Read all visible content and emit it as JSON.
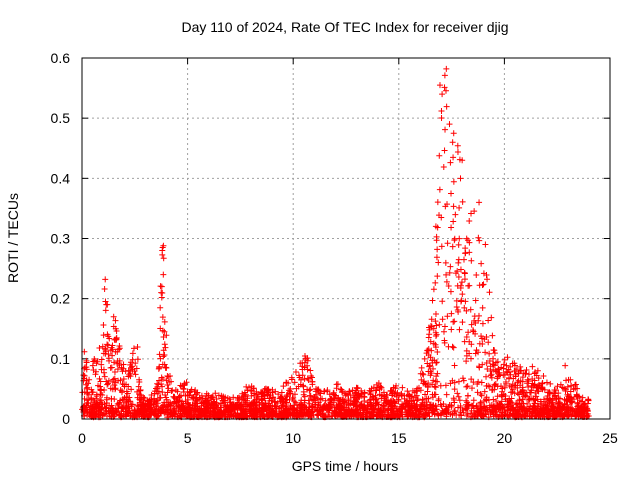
{
  "chart_data": {
    "type": "scatter",
    "title": "Day 110 of 2024, Rate Of TEC Index for receiver djig",
    "xlabel": "GPS time / hours",
    "ylabel": "ROTI / TECUs",
    "xlim": [
      0,
      25
    ],
    "ylim": [
      0,
      0.6
    ],
    "xticks": [
      0,
      5,
      10,
      15,
      20,
      25
    ],
    "xtick_labels": [
      "0",
      "5",
      "10",
      "15",
      "20",
      "25"
    ],
    "yticks": [
      0,
      0.1,
      0.2,
      0.3,
      0.4,
      0.5,
      0.6
    ],
    "ytick_labels": [
      "0",
      "0.1",
      "0.2",
      "0.3",
      "0.4",
      "0.5",
      "0.6"
    ],
    "grid": true,
    "marker": "+",
    "color": "#ff0000",
    "envelope": [
      [
        0.0,
        0.13
      ],
      [
        0.3,
        0.09
      ],
      [
        0.6,
        0.1
      ],
      [
        0.9,
        0.12
      ],
      [
        1.1,
        0.23
      ],
      [
        1.3,
        0.13
      ],
      [
        1.6,
        0.17
      ],
      [
        1.9,
        0.09
      ],
      [
        2.2,
        0.08
      ],
      [
        2.5,
        0.12
      ],
      [
        2.6,
        0.13
      ],
      [
        2.8,
        0.04
      ],
      [
        3.2,
        0.03
      ],
      [
        3.6,
        0.06
      ],
      [
        3.75,
        0.28
      ],
      [
        3.85,
        0.29
      ],
      [
        4.0,
        0.15
      ],
      [
        4.3,
        0.05
      ],
      [
        5.0,
        0.06
      ],
      [
        5.5,
        0.04
      ],
      [
        6.0,
        0.04
      ],
      [
        6.5,
        0.04
      ],
      [
        7.0,
        0.03
      ],
      [
        7.5,
        0.04
      ],
      [
        7.9,
        0.06
      ],
      [
        8.3,
        0.04
      ],
      [
        8.8,
        0.05
      ],
      [
        9.3,
        0.04
      ],
      [
        9.7,
        0.06
      ],
      [
        10.2,
        0.08
      ],
      [
        10.6,
        0.12
      ],
      [
        11.0,
        0.05
      ],
      [
        11.5,
        0.05
      ],
      [
        12.0,
        0.06
      ],
      [
        12.5,
        0.04
      ],
      [
        13.0,
        0.05
      ],
      [
        13.5,
        0.04
      ],
      [
        14.0,
        0.06
      ],
      [
        14.5,
        0.04
      ],
      [
        15.0,
        0.06
      ],
      [
        15.5,
        0.04
      ],
      [
        15.8,
        0.05
      ],
      [
        16.0,
        0.08
      ],
      [
        16.3,
        0.12
      ],
      [
        16.6,
        0.2
      ],
      [
        16.8,
        0.4
      ],
      [
        17.0,
        0.55
      ],
      [
        17.2,
        0.58
      ],
      [
        17.4,
        0.5
      ],
      [
        17.6,
        0.42
      ],
      [
        17.8,
        0.48
      ],
      [
        18.0,
        0.38
      ],
      [
        18.3,
        0.34
      ],
      [
        18.6,
        0.36
      ],
      [
        18.9,
        0.3
      ],
      [
        19.2,
        0.25
      ],
      [
        19.5,
        0.12
      ],
      [
        19.8,
        0.08
      ],
      [
        20.1,
        0.11
      ],
      [
        20.5,
        0.09
      ],
      [
        21.0,
        0.08
      ],
      [
        21.5,
        0.09
      ],
      [
        22.0,
        0.06
      ],
      [
        22.5,
        0.05
      ],
      [
        22.9,
        0.09
      ],
      [
        23.3,
        0.06
      ],
      [
        23.7,
        0.04
      ],
      [
        24.0,
        0.03
      ]
    ],
    "outliers": [
      [
        1.1,
        0.232
      ],
      [
        1.15,
        0.19
      ],
      [
        1.2,
        0.19
      ],
      [
        1.5,
        0.17
      ],
      [
        1.6,
        0.15
      ],
      [
        3.75,
        0.21
      ],
      [
        3.78,
        0.22
      ],
      [
        3.8,
        0.28
      ],
      [
        3.82,
        0.285
      ],
      [
        3.85,
        0.24
      ],
      [
        3.9,
        0.145
      ],
      [
        17.25,
        0.582
      ],
      [
        16.95,
        0.555
      ],
      [
        17.05,
        0.54
      ],
      [
        17.6,
        0.475
      ],
      [
        17.55,
        0.46
      ],
      [
        18.0,
        0.43
      ],
      [
        18.8,
        0.36
      ],
      [
        19.1,
        0.29
      ],
      [
        17.4,
        0.49
      ]
    ]
  }
}
